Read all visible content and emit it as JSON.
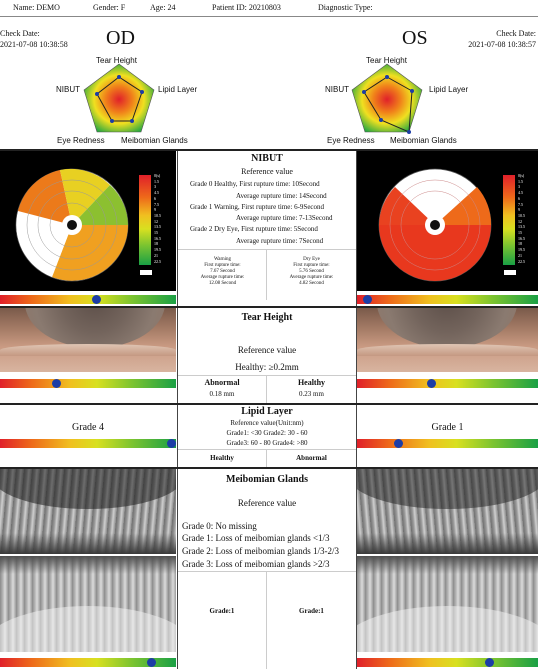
{
  "header": {
    "name": "Name: DEMO",
    "gender": "Gender: F",
    "age": "Age: 24",
    "patient_id": "Patient ID: 20210803",
    "diagnostic": "Diagnostic Type:"
  },
  "od": {
    "check_label": "Check Date:",
    "check_date": "2021-07-08 10:38:58",
    "eye": "OD",
    "lipid_grade": "Grade 4",
    "lipid_level": 0.99,
    "nibut_level": 0.55,
    "tear_level": 0.32,
    "meibo_level": 0.86
  },
  "os": {
    "check_label": "Check Date:",
    "check_date": "2021-07-08 10:38:57",
    "eye": "OS",
    "lipid_grade": "Grade 1",
    "lipid_level": 0.23,
    "nibut_level": 0.06,
    "tear_level": 0.41,
    "meibo_level": 0.73
  },
  "radar": {
    "top": "Tear Height",
    "left": "NIBUT",
    "right": "Lipid Layer",
    "bl": "Eye Redness",
    "br": "Meibomian Glands"
  },
  "nibut": {
    "title": "NIBUT",
    "ref": "Reference value",
    "g0": "Grade 0 Healthy, First rupture time:  10Second",
    "g0b": "Average rupture time: 14Second",
    "g1": "Grade 1 Warning, First rupture time:  6-9Second",
    "g1b": "Average rupture time: 7-13Second",
    "g2": "Grade 2 Dry Eye, First rupture time:  5Second",
    "g2b": "Average rupture time: 7Second",
    "od_status": "Warning",
    "od_first": "First rupture time:",
    "od_first_v": "7.67 Second",
    "od_avg": "Average rupture time:",
    "od_avg_v": "12.08 Second",
    "os_status": "Dry Eye",
    "os_first": "First rupture time:",
    "os_first_v": "5.76 Second",
    "os_avg": "Average rupture time:",
    "os_avg_v": "4.82 Second",
    "scale": [
      "0(s)",
      "1.5",
      "3",
      "4.5",
      "6",
      "7.5",
      "9",
      "10.5",
      "12",
      "13.5",
      "15",
      "16.5",
      "18",
      "19.5",
      "21",
      "22.5"
    ]
  },
  "tear": {
    "title": "Tear Height",
    "ref": "Reference value",
    "healthy": "Healthy:   ≥0.2mm",
    "od_status": "Abnormal",
    "od_value": "0.18 mm",
    "os_status": "Healthy",
    "os_value": "0.23 mm"
  },
  "lipid": {
    "title": "Lipid Layer",
    "ref": "Reference value(Unit:nm)",
    "r1": "Grade1: <30 Grade2: 30 - 60",
    "r2": "Grade3: 60 - 80 Grade4: >80",
    "od_status": "Healthy",
    "os_status": "Abnormal"
  },
  "meibo": {
    "title": "Meibomian Glands",
    "ref": "Reference value",
    "g0": "Grade 0: No missing",
    "g1": "Grade 1: Loss of meibomian glands <1/3",
    "g2": "Grade 2: Loss of meibomian glands 1/3-2/3",
    "g3": "Grade 3: Loss of meibomian glands >2/3",
    "od_grade": "Grade:1",
    "os_grade": "Grade:1"
  },
  "colors": {
    "red": "#e0202a",
    "yellow": "#f0c020",
    "green": "#1aa045",
    "marker": "#1c3da6"
  }
}
